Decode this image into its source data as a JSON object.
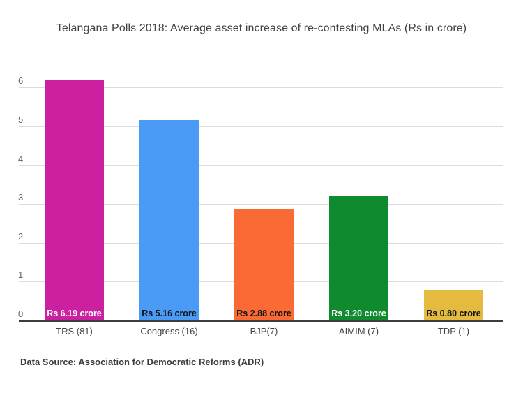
{
  "title": "Telangana Polls 2018: Average asset increase of re-contesting MLAs (Rs in crore)",
  "footer": "Data Source: Association for Democratic Reforms (ADR)",
  "chart_data": {
    "type": "bar",
    "title": "Telangana Polls 2018: Average asset increase of re-contesting MLAs (Rs in crore)",
    "categories": [
      "TRS (81)",
      "Congress (16)",
      "BJP(7)",
      "AIMIM (7)",
      "TDP (1)"
    ],
    "values": [
      6.19,
      5.16,
      2.88,
      3.2,
      0.8
    ],
    "bar_value_labels": [
      "Rs 6.19 crore",
      "Rs 5.16 crore",
      "Rs 2.88 crore",
      "Rs 3.20 crore",
      "Rs 0.80 crore"
    ],
    "bar_colors": [
      "#CB20A0",
      "#4A9BF5",
      "#FB6A35",
      "#108A2E",
      "#E4BA3F"
    ],
    "bar_label_text_colors": [
      "#FFFFFF",
      "#111111",
      "#111111",
      "#FFFFFF",
      "#111111"
    ],
    "xlabel": "",
    "ylabel": "",
    "ylim": [
      0,
      6
    ],
    "yticks": [
      0,
      1,
      2,
      3,
      4,
      5,
      6
    ],
    "grid": true,
    "legend": "none",
    "source_note": "Data Source: Association for Democratic Reforms (ADR)"
  },
  "colors": {
    "background": "#FFFFFF",
    "title_text": "#424242",
    "tick_text": "#666666",
    "category_text": "#424242",
    "gridline": "#DCDCDC",
    "axis_line": "#3D3D3D",
    "footer_text": "#3D3D3D"
  }
}
